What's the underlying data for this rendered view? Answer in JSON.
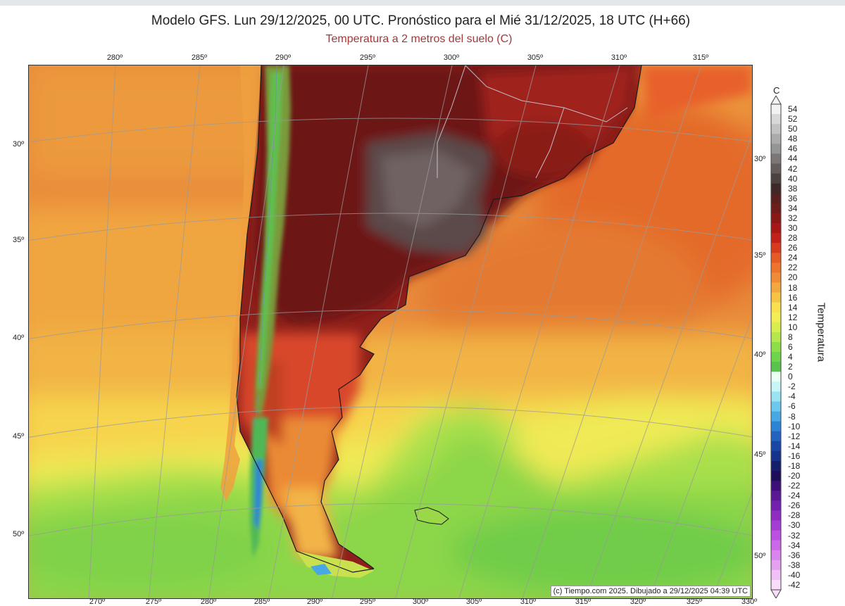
{
  "header": {
    "title": "Modelo GFS. Lun 29/12/2025, 00 UTC. Pronóstico para el Mié 31/12/2025, 18 UTC (H+66)",
    "subtitle": "Temperatura a 2 metros del suelo (C)"
  },
  "map": {
    "region": "Southern South America (Argentina, Chile, Uruguay)",
    "lon_labels_top": [
      "280º",
      "285º",
      "290º",
      "295º",
      "300º",
      "305º",
      "310º",
      "315º"
    ],
    "lon_labels_bottom": [
      "270º",
      "275º",
      "280º",
      "285º",
      "290º",
      "295º",
      "300º",
      "305º",
      "310º",
      "315º",
      "320º",
      "325º",
      "330º"
    ],
    "lat_labels_left": [
      "30º",
      "35º",
      "40º",
      "45º",
      "50º"
    ],
    "lat_labels_right": [
      "30º",
      "35º",
      "40º",
      "45º",
      "50º"
    ],
    "credit": "(c) Tiempo.com 2025. Dibujado a 29/12/2025 04:39 UTC"
  },
  "colorbar": {
    "unit": "C",
    "label": "Temperatura",
    "ticks": [
      "54",
      "52",
      "50",
      "48",
      "46",
      "44",
      "42",
      "40",
      "38",
      "36",
      "34",
      "32",
      "30",
      "28",
      "26",
      "24",
      "22",
      "20",
      "18",
      "16",
      "14",
      "12",
      "10",
      "8",
      "6",
      "4",
      "2",
      "0",
      "-2",
      "-4",
      "-6",
      "-8",
      "-10",
      "-12",
      "-14",
      "-16",
      "-18",
      "-20",
      "-22",
      "-24",
      "-26",
      "-28",
      "-30",
      "-32",
      "-34",
      "-36",
      "-38",
      "-40",
      "-42"
    ],
    "colors": [
      "#f2f2f2",
      "#d8d8d8",
      "#c2c2c2",
      "#ababab",
      "#959595",
      "#7d7676",
      "#655c5c",
      "#4e4141",
      "#402828",
      "#5a1f1f",
      "#701c1c",
      "#8a1818",
      "#a81616",
      "#c4201a",
      "#d83a1e",
      "#e65a24",
      "#ec742e",
      "#f08c38",
      "#f2a83e",
      "#f5c446",
      "#f8e052",
      "#f2ee54",
      "#d8ee4e",
      "#b4e84c",
      "#8ede4a",
      "#6ed44c",
      "#58c44c",
      "#e8fff2",
      "#c8f5f8",
      "#9ae4f2",
      "#6cc8ec",
      "#48a8e4",
      "#2e84d4",
      "#2262c0",
      "#1a46a6",
      "#16328a",
      "#141e6c",
      "#1e0e5a",
      "#3c1078",
      "#5a1896",
      "#7420ae",
      "#8e2cc4",
      "#a63cd6",
      "#bc50e2",
      "#cc68ea",
      "#da84ee",
      "#e6a0f2",
      "#f0c0f6",
      "#f8dcfa"
    ]
  }
}
